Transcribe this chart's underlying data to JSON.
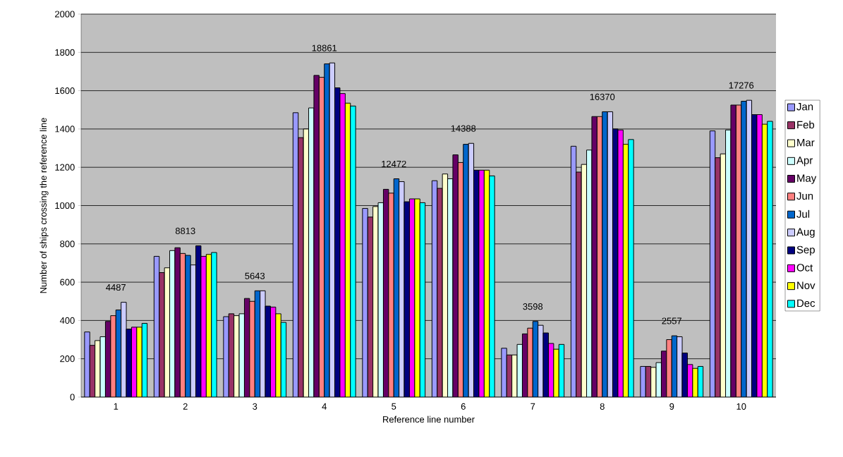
{
  "chart_data": {
    "type": "bar",
    "xlabel": "Reference line number",
    "ylabel": "Number of ships crossing the reference line",
    "categories": [
      "1",
      "2",
      "3",
      "4",
      "5",
      "6",
      "7",
      "8",
      "9",
      "10"
    ],
    "series": [
      {
        "name": "Jan",
        "color": "#9999ff",
        "values": [
          340,
          735,
          420,
          1485,
          985,
          1130,
          255,
          1310,
          160,
          1390
        ]
      },
      {
        "name": "Feb",
        "color": "#993366",
        "values": [
          270,
          650,
          435,
          1355,
          940,
          1090,
          220,
          1175,
          160,
          1250
        ]
      },
      {
        "name": "Mar",
        "color": "#ffffcc",
        "values": [
          295,
          675,
          425,
          1400,
          995,
          1165,
          220,
          1215,
          155,
          1270
        ]
      },
      {
        "name": "Apr",
        "color": "#ccffff",
        "values": [
          315,
          765,
          435,
          1510,
          1015,
          1140,
          275,
          1290,
          180,
          1395
        ]
      },
      {
        "name": "May",
        "color": "#660066",
        "values": [
          395,
          780,
          515,
          1680,
          1085,
          1265,
          330,
          1465,
          240,
          1525
        ]
      },
      {
        "name": "Jun",
        "color": "#ff8080",
        "values": [
          425,
          750,
          500,
          1670,
          1065,
          1225,
          360,
          1465,
          300,
          1525
        ]
      },
      {
        "name": "Jul",
        "color": "#0066cc",
        "values": [
          455,
          740,
          555,
          1740,
          1140,
          1320,
          395,
          1490,
          320,
          1545
        ]
      },
      {
        "name": "Aug",
        "color": "#ccccff",
        "values": [
          495,
          690,
          555,
          1745,
          1125,
          1325,
          375,
          1490,
          315,
          1550
        ]
      },
      {
        "name": "Sep",
        "color": "#000080",
        "values": [
          355,
          790,
          475,
          1615,
          1020,
          1185,
          335,
          1400,
          230,
          1475
        ]
      },
      {
        "name": "Oct",
        "color": "#ff00ff",
        "values": [
          365,
          735,
          470,
          1585,
          1035,
          1185,
          280,
          1395,
          170,
          1475
        ]
      },
      {
        "name": "Nov",
        "color": "#ffff00",
        "values": [
          365,
          745,
          435,
          1535,
          1035,
          1185,
          250,
          1320,
          150,
          1425
        ]
      },
      {
        "name": "Dec",
        "color": "#00ffff",
        "values": [
          385,
          755,
          390,
          1520,
          1015,
          1155,
          275,
          1345,
          160,
          1440
        ]
      }
    ],
    "ylim": [
      0,
      2000
    ],
    "yticks": [
      0,
      200,
      400,
      600,
      800,
      1000,
      1200,
      1400,
      1600,
      1800,
      2000
    ],
    "grid": "y",
    "legend": "right",
    "annotations": [
      "4487",
      "8813",
      "5643",
      "18861",
      "12472",
      "14388",
      "3598",
      "16370",
      "2557",
      "17276"
    ]
  }
}
